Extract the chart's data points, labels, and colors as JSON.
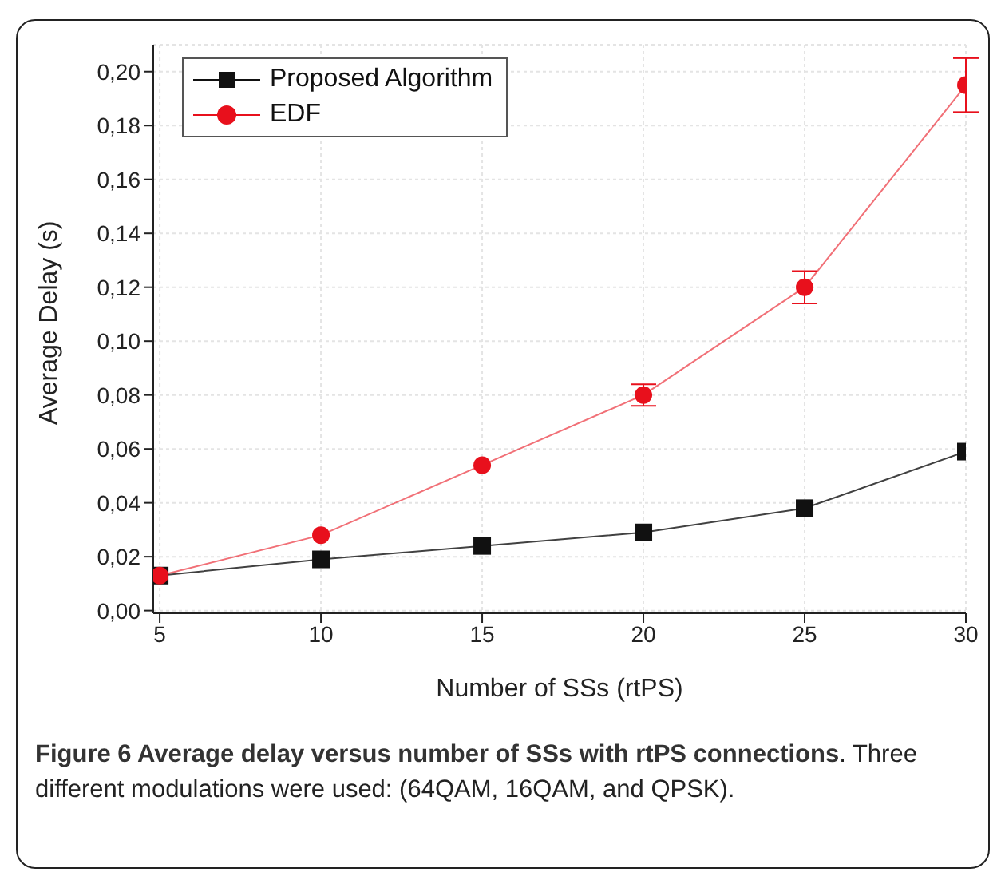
{
  "chart_data": {
    "type": "line",
    "xlabel": "Number of SSs (rtPS)",
    "ylabel": "Average Delay (s)",
    "x": [
      5,
      10,
      15,
      20,
      25,
      30
    ],
    "series": [
      {
        "name": "Proposed Algorithm",
        "color": "#111111",
        "marker": "square",
        "values": [
          0.013,
          0.019,
          0.024,
          0.029,
          0.038,
          0.059
        ]
      },
      {
        "name": "EDF",
        "color": "#e8101c",
        "marker": "circle",
        "values": [
          0.013,
          0.028,
          0.054,
          0.08,
          0.12,
          0.195
        ],
        "errors": [
          null,
          null,
          null,
          0.004,
          0.006,
          0.01
        ]
      }
    ],
    "xlim": [
      4.8,
      30
    ],
    "xticks": [
      5,
      10,
      15,
      20,
      25,
      30
    ],
    "ylim": [
      -0.001,
      0.21
    ],
    "yticks": [
      {
        "value": 0,
        "label": "0,00"
      },
      {
        "value": 0.02,
        "label": "0,02"
      },
      {
        "value": 0.04,
        "label": "0,04"
      },
      {
        "value": 0.06,
        "label": "0,06"
      },
      {
        "value": 0.08,
        "label": "0,08"
      },
      {
        "value": 0.1,
        "label": "0,10"
      },
      {
        "value": 0.12,
        "label": "0,12"
      },
      {
        "value": 0.14,
        "label": "0,14"
      },
      {
        "value": 0.16,
        "label": "0,16"
      },
      {
        "value": 0.18,
        "label": "0,18"
      },
      {
        "value": 0.2,
        "label": "0,20"
      }
    ],
    "grid": true,
    "legend": "top left",
    "line_style": "solid",
    "annotations": [
      "Figure 6 Average delay versus number of SSs with rtPS connections",
      ". Three different modulations were used: (64QAM, 16QAM, and QPSK)."
    ]
  }
}
